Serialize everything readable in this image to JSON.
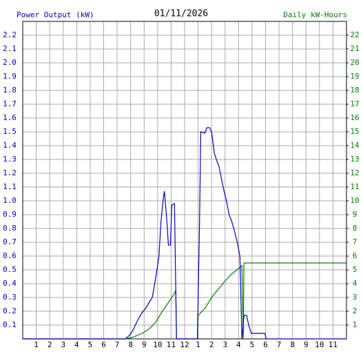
{
  "chart_data": {
    "type": "line",
    "title": "01/11/2026",
    "xlim": [
      0,
      24
    ],
    "xticks": [
      1,
      2,
      3,
      4,
      5,
      6,
      7,
      8,
      9,
      10,
      11,
      12,
      {
        "value": 13,
        "label": "1"
      },
      {
        "value": 14,
        "label": "2"
      },
      {
        "value": 15,
        "label": "3"
      },
      {
        "value": 16,
        "label": "4"
      },
      {
        "value": 17,
        "label": "5"
      },
      {
        "value": 18,
        "label": "6"
      },
      {
        "value": 19,
        "label": "7"
      },
      {
        "value": 20,
        "label": "8"
      },
      {
        "value": 21,
        "label": "9"
      },
      {
        "value": 22,
        "label": "10"
      },
      {
        "value": 23,
        "label": "11"
      }
    ],
    "ylim": [
      0,
      2.3
    ],
    "yticks": [
      0.1,
      0.2,
      0.3,
      0.4,
      0.5,
      0.6,
      0.7,
      0.8,
      0.9,
      {
        "value": 1,
        "label": "1.0"
      },
      1.1,
      1.2,
      1.3,
      1.4,
      1.5,
      1.6,
      1.7,
      1.8,
      1.9,
      {
        "value": 2,
        "label": "2.0"
      },
      2.1,
      2.2
    ],
    "y2lim": [
      0,
      23
    ],
    "y2ticks": [
      1,
      2,
      3,
      4,
      5,
      6,
      7,
      8,
      9,
      10,
      11,
      12,
      13,
      14,
      15,
      16,
      17,
      18,
      19,
      20,
      21,
      22
    ],
    "grid": true,
    "series": [
      {
        "name": "Power Output (kW)",
        "color": "#0000c0",
        "axis": "y",
        "x": [
          0,
          7.6,
          7.85,
          8.1,
          8.35,
          8.6,
          8.85,
          9.1,
          9.35,
          9.6,
          9.75,
          9.95,
          10.1,
          10.25,
          10.4,
          10.5,
          10.65,
          10.8,
          10.95,
          11.05,
          11.25,
          11.4,
          12.95,
          13.1,
          13.2,
          13.5,
          13.65,
          13.85,
          14.0,
          14.2,
          14.35,
          14.55,
          14.75,
          14.9,
          15.1,
          15.3,
          15.5,
          15.7,
          15.9,
          16.1,
          16.25,
          16.4,
          16.6,
          16.75,
          16.95,
          17.95,
          18.05,
          24
        ],
        "values": [
          0,
          0,
          0.02,
          0.05,
          0.1,
          0.15,
          0.19,
          0.22,
          0.26,
          0.3,
          0.38,
          0.5,
          0.6,
          0.85,
          1.0,
          1.07,
          0.9,
          0.68,
          0.68,
          0.97,
          0.98,
          0,
          0,
          0.8,
          1.5,
          1.49,
          1.53,
          1.53,
          1.5,
          1.35,
          1.3,
          1.25,
          1.15,
          1.08,
          1.0,
          0.9,
          0.85,
          0.78,
          0.7,
          0.6,
          0,
          0.17,
          0.17,
          0.1,
          0.04,
          0.04,
          0,
          0
        ]
      },
      {
        "name": "Daily kW-Hours",
        "color": "#008000",
        "axis": "y2",
        "x": [
          0,
          7.6,
          8.1,
          8.85,
          9.35,
          9.85,
          10.35,
          10.85,
          11.25,
          11.35,
          11.4,
          12.95,
          13.0,
          13.5,
          14.0,
          14.5,
          15.0,
          15.5,
          16.0,
          16.25,
          16.35,
          16.4,
          24
        ],
        "values": [
          0,
          0,
          0.1,
          0.4,
          0.7,
          1.2,
          2.0,
          2.7,
          3.3,
          3.5,
          0,
          0,
          1.7,
          2.2,
          3.0,
          3.6,
          4.2,
          4.7,
          5.1,
          5.3,
          0,
          5.5,
          5.5
        ]
      }
    ]
  }
}
